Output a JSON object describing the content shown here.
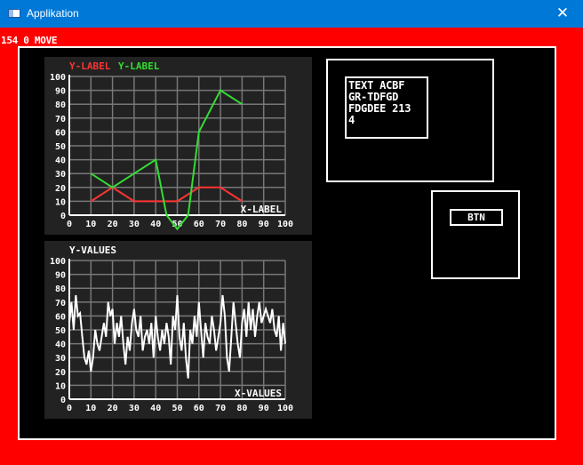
{
  "window": {
    "title": "Applikation",
    "close_glyph": "✕",
    "titlebar_color": "#0078d7",
    "icon": "app-window-icon",
    "close_icon": "close-icon"
  },
  "status": {
    "text": "154 0 MOVE"
  },
  "colors": {
    "background": "#ff0000",
    "canvas": "#000000",
    "chart_bg": "#222222",
    "grid": "#777777"
  },
  "text_box": {
    "text": "TEXT ACBF\nGR-TDFGD\nFDGDEE 213\n4"
  },
  "button": {
    "label": "BTN"
  },
  "chart_data": [
    {
      "type": "line",
      "xlabel": "X-LABEL",
      "ylabel": "",
      "xlim": [
        0,
        100
      ],
      "ylim": [
        0,
        100
      ],
      "xticks": [
        0,
        10,
        20,
        30,
        40,
        50,
        60,
        70,
        80,
        90,
        100
      ],
      "yticks": [
        0,
        10,
        20,
        30,
        40,
        50,
        60,
        70,
        80,
        90,
        100
      ],
      "grid": true,
      "series": [
        {
          "name": "Y-LABEL",
          "color": "#ff3333",
          "x": [
            10,
            20,
            30,
            40,
            50,
            60,
            70,
            80
          ],
          "y": [
            10,
            20,
            10,
            10,
            10,
            20,
            20,
            10
          ]
        },
        {
          "name": "Y-LABEL",
          "color": "#33dd33",
          "x": [
            10,
            20,
            30,
            40,
            45,
            50,
            55,
            60,
            70,
            80
          ],
          "y": [
            30,
            20,
            30,
            40,
            0,
            -10,
            0,
            60,
            90,
            80
          ]
        }
      ]
    },
    {
      "type": "line",
      "xlabel": "X-VALUES",
      "ylabel": "Y-VALUES",
      "xlim": [
        0,
        100
      ],
      "ylim": [
        0,
        100
      ],
      "xticks": [
        0,
        10,
        20,
        30,
        40,
        50,
        60,
        70,
        80,
        90,
        100
      ],
      "yticks": [
        0,
        10,
        20,
        30,
        40,
        50,
        60,
        70,
        80,
        90,
        100
      ],
      "grid": true,
      "series": [
        {
          "name": "",
          "color": "#ffffff",
          "x": [
            0,
            1,
            2,
            3,
            4,
            5,
            6,
            7,
            8,
            9,
            10,
            11,
            12,
            13,
            14,
            15,
            16,
            17,
            18,
            19,
            20,
            21,
            22,
            23,
            24,
            25,
            26,
            27,
            28,
            29,
            30,
            31,
            32,
            33,
            34,
            35,
            36,
            37,
            38,
            39,
            40,
            41,
            42,
            43,
            44,
            45,
            46,
            47,
            48,
            49,
            50,
            51,
            52,
            53,
            54,
            55,
            56,
            57,
            58,
            59,
            60,
            61,
            62,
            63,
            64,
            65,
            66,
            67,
            68,
            69,
            70,
            71,
            72,
            73,
            74,
            75,
            76,
            77,
            78,
            79,
            80,
            81,
            82,
            83,
            84,
            85,
            86,
            87,
            88,
            89,
            90,
            91,
            92,
            93,
            94,
            95,
            96,
            97,
            98,
            99,
            100
          ],
          "y": [
            55,
            70,
            50,
            75,
            60,
            62,
            45,
            30,
            25,
            35,
            20,
            30,
            50,
            40,
            35,
            45,
            55,
            45,
            70,
            60,
            65,
            40,
            55,
            45,
            60,
            40,
            25,
            45,
            35,
            55,
            65,
            50,
            45,
            60,
            35,
            45,
            50,
            40,
            55,
            30,
            60,
            45,
            35,
            50,
            40,
            55,
            45,
            25,
            60,
            50,
            75,
            45,
            35,
            55,
            30,
            15,
            50,
            40,
            60,
            45,
            70,
            50,
            30,
            55,
            45,
            40,
            60,
            50,
            35,
            45,
            55,
            75,
            60,
            30,
            20,
            45,
            70,
            55,
            40,
            30,
            55,
            65,
            45,
            70,
            50,
            65,
            45,
            60,
            70,
            55,
            60,
            65,
            60,
            55,
            65,
            50,
            45,
            60,
            35,
            55,
            40
          ]
        }
      ]
    }
  ]
}
